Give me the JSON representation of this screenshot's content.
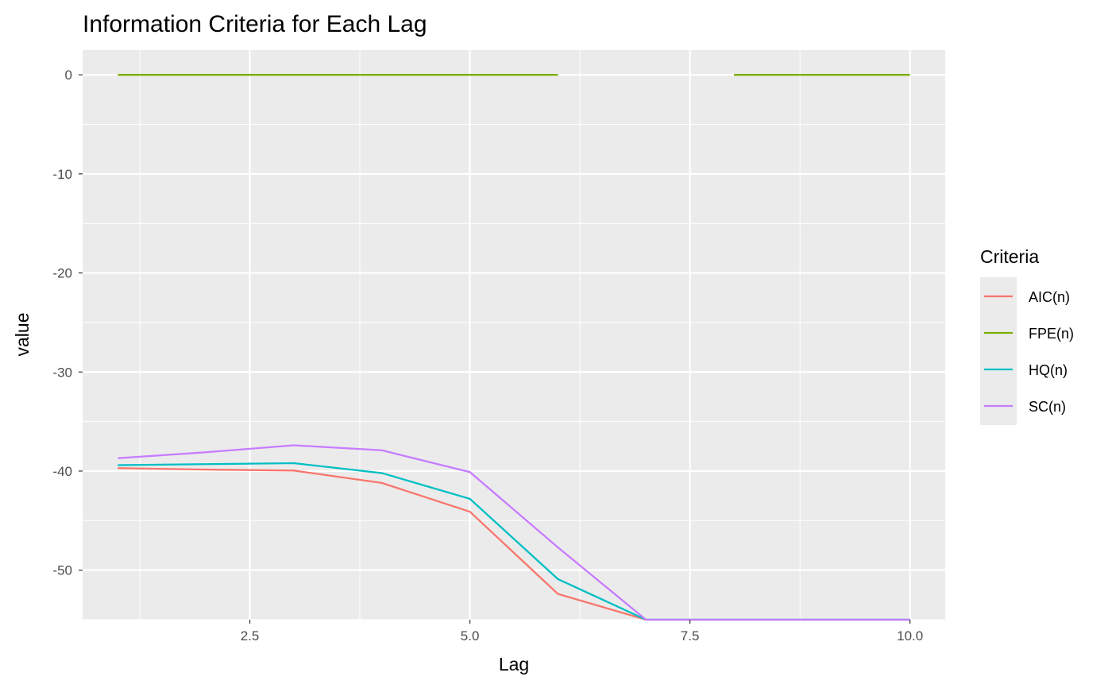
{
  "chart_data": {
    "type": "line",
    "title": "Information Criteria for Each Lag",
    "xlabel": "Lag",
    "ylabel": "value",
    "xlim": [
      0.6,
      10.4
    ],
    "ylim": [
      -55,
      2.5
    ],
    "x_ticks": [
      2.5,
      5.0,
      7.5,
      10.0
    ],
    "x_tick_labels": [
      "2.5",
      "5.0",
      "7.5",
      "10.0"
    ],
    "y_ticks": [
      0,
      -10,
      -20,
      -30,
      -40,
      -50
    ],
    "y_tick_labels": [
      "0",
      "-10",
      "-20",
      "-30",
      "-40",
      "-50"
    ],
    "grid": true,
    "background": "#ebebeb",
    "legend": {
      "title": "Criteria",
      "position": "right"
    },
    "series": [
      {
        "name": "AIC(n)",
        "color": "#f8766d",
        "x": [
          1,
          2,
          3,
          4,
          5,
          6,
          7,
          8,
          9,
          10
        ],
        "y": [
          -39.7,
          -39.85,
          -39.95,
          -41.2,
          -44.1,
          -52.4,
          -55,
          -55,
          -55,
          -55
        ]
      },
      {
        "name": "FPE(n)",
        "color": "#7cae00",
        "x": [
          1,
          2,
          3,
          4,
          5,
          6,
          7,
          8,
          9,
          10
        ],
        "y": [
          0,
          0,
          0,
          0,
          0,
          0,
          null,
          0,
          0,
          0
        ]
      },
      {
        "name": "HQ(n)",
        "color": "#00bfc4",
        "x": [
          1,
          2,
          3,
          4,
          5,
          6,
          7,
          8,
          9,
          10
        ],
        "y": [
          -39.4,
          -39.3,
          -39.2,
          -40.2,
          -42.8,
          -50.9,
          -55,
          -55,
          -55,
          -55
        ]
      },
      {
        "name": "SC(n)",
        "color": "#c77cff",
        "x": [
          1,
          2,
          3,
          4,
          5,
          6,
          7,
          8,
          9,
          10
        ],
        "y": [
          -38.7,
          -38.1,
          -37.4,
          -37.9,
          -40.1,
          -47.7,
          -55,
          -55,
          -55,
          -55
        ]
      }
    ]
  }
}
